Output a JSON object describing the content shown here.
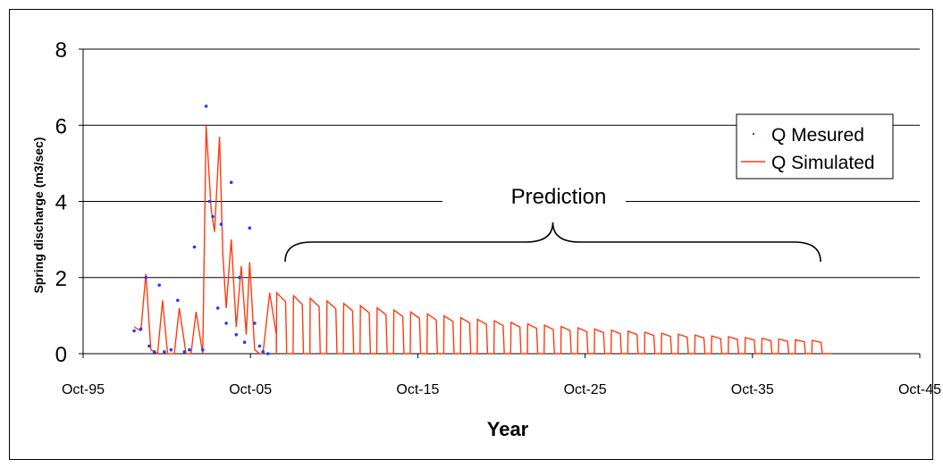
{
  "chart_data": {
    "type": "line",
    "xlabel": "Year",
    "ylabel": "Spring discharge (m3/sec)",
    "x_ticks": [
      "Oct-95",
      "Oct-05",
      "Oct-15",
      "Oct-25",
      "Oct-35",
      "Oct-45"
    ],
    "y_ticks": [
      "0",
      "2",
      "4",
      "6",
      "8"
    ],
    "ylim": [
      0,
      8
    ],
    "xlim_years": [
      1995.75,
      2045.75
    ],
    "grid": "horizontal",
    "legend_position": "top-right",
    "annotation": "Prediction",
    "series": [
      {
        "name": "Q Mesured",
        "style": "markers",
        "color": "#1f3fff",
        "x": [
          1998.8,
          1999.2,
          1999.5,
          1999.7,
          2000.0,
          2000.3,
          2000.6,
          2001.0,
          2001.4,
          2001.8,
          2002.1,
          2002.4,
          2002.9,
          2003.1,
          2003.3,
          2003.5,
          2003.8,
          2004.0,
          2004.3,
          2004.6,
          2004.9,
          2005.1,
          2005.4,
          2005.7,
          2006.0,
          2006.3,
          2006.5,
          2006.8
        ],
        "y": [
          0.6,
          0.65,
          2.0,
          0.2,
          0.05,
          1.8,
          0.05,
          0.1,
          1.4,
          0.05,
          0.1,
          2.8,
          0.1,
          6.5,
          4.0,
          3.6,
          1.2,
          3.4,
          0.8,
          4.5,
          0.5,
          2.0,
          0.3,
          3.3,
          0.8,
          0.2,
          0.05,
          0.0
        ]
      },
      {
        "name": "Q Simulated",
        "style": "line",
        "color": "#ff3b10",
        "x": [
          1998.8,
          1999.2,
          1999.5,
          1999.8,
          2000.2,
          2000.5,
          2000.8,
          2001.2,
          2001.5,
          2001.9,
          2002.2,
          2002.5,
          2002.9,
          2003.1,
          2003.4,
          2003.6,
          2003.9,
          2004.1,
          2004.3,
          2004.6,
          2004.9,
          2005.2,
          2005.5,
          2005.7,
          2006.0,
          2006.3,
          2006.5,
          2006.9,
          2007.3
        ],
        "y": [
          0.7,
          0.6,
          2.1,
          0.1,
          0.0,
          1.4,
          0.0,
          0.0,
          1.2,
          0.0,
          0.0,
          1.1,
          0.0,
          6.0,
          3.8,
          3.2,
          5.7,
          2.6,
          1.2,
          3.0,
          0.7,
          2.3,
          0.5,
          2.4,
          0.1,
          0.0,
          0.0,
          1.6,
          0.5
        ]
      }
    ],
    "prediction_cycles": {
      "start_year": 2007.3,
      "end_year": 2040.5,
      "period_years": 1.0,
      "first_peak": 1.6,
      "last_peak": 0.35
    }
  }
}
